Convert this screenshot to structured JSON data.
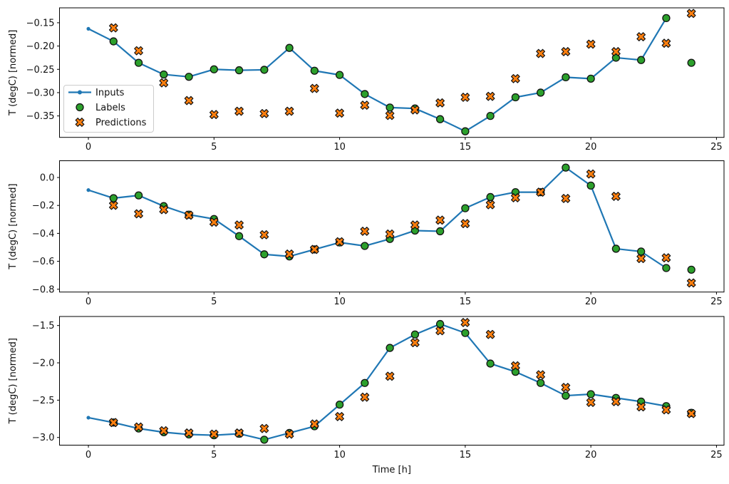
{
  "figure": {
    "xlabel": "Time [h]",
    "ylabel": "T (degC) [normed]",
    "colors": {
      "inputs_line": "#1f77b4",
      "labels_marker": "#2ca02c",
      "predictions_marker": "#ff7f0e",
      "marker_edge": "#111111",
      "axes_edge": "#000000",
      "legend_border": "#cccccc",
      "legend_background": "rgba(255,255,255,0.85)"
    },
    "legend": {
      "items": [
        {
          "label": "Inputs",
          "marker": "line-dot"
        },
        {
          "label": "Labels",
          "marker": "circle"
        },
        {
          "label": "Predictions",
          "marker": "x"
        }
      ]
    }
  },
  "chart_data": [
    {
      "type": "line",
      "ylabel": "T (degC) [normed]",
      "xlim": [
        -1.15,
        25.3
      ],
      "ylim": [
        -0.396,
        -0.118
      ],
      "xticks": [
        0,
        5,
        10,
        15,
        20,
        25
      ],
      "xtick_labels": [
        "0",
        "5",
        "10",
        "15",
        "20",
        "25"
      ],
      "yticks": [
        -0.15,
        -0.2,
        -0.25,
        -0.3,
        -0.35
      ],
      "ytick_labels": [
        "−0.15",
        "−0.20",
        "−0.25",
        "−0.30",
        "−0.35"
      ],
      "series": [
        {
          "name": "Inputs",
          "kind": "line-dot",
          "x": [
            0,
            1,
            2,
            3,
            4,
            5,
            6,
            7,
            8,
            9,
            10,
            11,
            12,
            13,
            14,
            15,
            16,
            17,
            18,
            19,
            20,
            21,
            22,
            23
          ],
          "y": [
            -0.163,
            -0.19,
            -0.236,
            -0.261,
            -0.266,
            -0.25,
            -0.252,
            -0.251,
            -0.204,
            -0.253,
            -0.262,
            -0.303,
            -0.332,
            -0.334,
            -0.357,
            -0.383,
            -0.35,
            -0.31,
            -0.3,
            -0.267,
            -0.27,
            -0.225,
            -0.23,
            -0.14
          ]
        },
        {
          "name": "Labels",
          "kind": "circle",
          "x": [
            1,
            2,
            3,
            4,
            5,
            6,
            7,
            8,
            9,
            10,
            11,
            12,
            13,
            14,
            15,
            16,
            17,
            18,
            19,
            20,
            21,
            22,
            23,
            24
          ],
          "y": [
            -0.19,
            -0.236,
            -0.261,
            -0.266,
            -0.25,
            -0.252,
            -0.251,
            -0.204,
            -0.253,
            -0.262,
            -0.303,
            -0.332,
            -0.334,
            -0.357,
            -0.383,
            -0.35,
            -0.31,
            -0.3,
            -0.267,
            -0.27,
            -0.225,
            -0.23,
            -0.14,
            -0.236
          ]
        },
        {
          "name": "Predictions",
          "kind": "x",
          "x": [
            1,
            2,
            3,
            4,
            5,
            6,
            7,
            8,
            9,
            10,
            11,
            12,
            13,
            14,
            15,
            16,
            17,
            18,
            19,
            20,
            21,
            22,
            23,
            24
          ],
          "y": [
            -0.161,
            -0.21,
            -0.279,
            -0.317,
            -0.347,
            -0.34,
            -0.345,
            -0.34,
            -0.291,
            -0.344,
            -0.327,
            -0.349,
            -0.337,
            -0.322,
            -0.31,
            -0.308,
            -0.27,
            -0.216,
            -0.212,
            -0.196,
            -0.212,
            -0.18,
            -0.194,
            -0.13
          ]
        }
      ]
    },
    {
      "type": "line",
      "ylabel": "T (degC) [normed]",
      "xlim": [
        -1.15,
        25.3
      ],
      "ylim": [
        -0.82,
        0.12
      ],
      "xticks": [
        0,
        5,
        10,
        15,
        20,
        25
      ],
      "xtick_labels": [
        "0",
        "5",
        "10",
        "15",
        "20",
        "25"
      ],
      "yticks": [
        0.0,
        -0.2,
        -0.4,
        -0.6,
        -0.8
      ],
      "ytick_labels": [
        "0.0",
        "−0.2",
        "−0.4",
        "−0.6",
        "−0.8"
      ],
      "series": [
        {
          "name": "Inputs",
          "kind": "line-dot",
          "x": [
            0,
            1,
            2,
            3,
            4,
            5,
            6,
            7,
            8,
            9,
            10,
            11,
            12,
            13,
            14,
            15,
            16,
            17,
            18,
            19,
            20,
            21,
            22,
            23
          ],
          "y": [
            -0.09,
            -0.148,
            -0.128,
            -0.205,
            -0.266,
            -0.297,
            -0.42,
            -0.55,
            -0.565,
            -0.515,
            -0.465,
            -0.49,
            -0.44,
            -0.38,
            -0.385,
            -0.22,
            -0.14,
            -0.105,
            -0.105,
            0.071,
            -0.058,
            -0.51,
            -0.53,
            -0.648
          ]
        },
        {
          "name": "Labels",
          "kind": "circle",
          "x": [
            1,
            2,
            3,
            4,
            5,
            6,
            7,
            8,
            9,
            10,
            11,
            12,
            13,
            14,
            15,
            16,
            17,
            18,
            19,
            20,
            21,
            22,
            23,
            24
          ],
          "y": [
            -0.148,
            -0.128,
            -0.205,
            -0.266,
            -0.297,
            -0.42,
            -0.55,
            -0.565,
            -0.515,
            -0.465,
            -0.49,
            -0.44,
            -0.38,
            -0.385,
            -0.22,
            -0.14,
            -0.105,
            -0.105,
            0.071,
            -0.058,
            -0.51,
            -0.53,
            -0.648,
            -0.66
          ]
        },
        {
          "name": "Predictions",
          "kind": "x",
          "x": [
            1,
            2,
            3,
            4,
            5,
            6,
            7,
            8,
            9,
            10,
            11,
            12,
            13,
            14,
            15,
            16,
            17,
            18,
            19,
            20,
            21,
            22,
            23,
            24
          ],
          "y": [
            -0.199,
            -0.26,
            -0.23,
            -0.27,
            -0.32,
            -0.34,
            -0.41,
            -0.548,
            -0.515,
            -0.46,
            -0.385,
            -0.405,
            -0.34,
            -0.305,
            -0.33,
            -0.195,
            -0.145,
            -0.105,
            -0.15,
            0.025,
            -0.135,
            -0.58,
            -0.575,
            -0.755
          ]
        }
      ]
    },
    {
      "type": "line",
      "ylabel": "T (degC) [normed]",
      "xlabel": "Time [h]",
      "xlim": [
        -1.15,
        25.3
      ],
      "ylim": [
        -3.103,
        -1.379
      ],
      "xticks": [
        0,
        5,
        10,
        15,
        20,
        25
      ],
      "xtick_labels": [
        "0",
        "5",
        "10",
        "15",
        "20",
        "25"
      ],
      "yticks": [
        -1.5,
        -2.0,
        -2.5,
        -3.0
      ],
      "ytick_labels": [
        "−1.5",
        "−2.0",
        "−2.5",
        "−3.0"
      ],
      "series": [
        {
          "name": "Inputs",
          "kind": "line-dot",
          "x": [
            0,
            1,
            2,
            3,
            4,
            5,
            6,
            7,
            8,
            9,
            10,
            11,
            12,
            13,
            14,
            15,
            16,
            17,
            18,
            19,
            20,
            21,
            22,
            23
          ],
          "y": [
            -2.735,
            -2.8,
            -2.88,
            -2.93,
            -2.96,
            -2.97,
            -2.95,
            -3.03,
            -2.94,
            -2.85,
            -2.56,
            -2.27,
            -1.8,
            -1.62,
            -1.48,
            -1.6,
            -2.01,
            -2.12,
            -2.27,
            -2.44,
            -2.42,
            -2.47,
            -2.52,
            -2.58
          ]
        },
        {
          "name": "Labels",
          "kind": "circle",
          "x": [
            1,
            2,
            3,
            4,
            5,
            6,
            7,
            8,
            9,
            10,
            11,
            12,
            13,
            14,
            15,
            16,
            17,
            18,
            19,
            20,
            21,
            22,
            23,
            24
          ],
          "y": [
            -2.8,
            -2.88,
            -2.93,
            -2.96,
            -2.97,
            -2.95,
            -3.03,
            -2.94,
            -2.85,
            -2.56,
            -2.27,
            -1.8,
            -1.62,
            -1.48,
            -1.6,
            -2.01,
            -2.12,
            -2.27,
            -2.44,
            -2.42,
            -2.47,
            -2.52,
            -2.58,
            -2.67
          ]
        },
        {
          "name": "Predictions",
          "kind": "x",
          "x": [
            1,
            2,
            3,
            4,
            5,
            6,
            7,
            8,
            9,
            10,
            11,
            12,
            13,
            14,
            15,
            16,
            17,
            18,
            19,
            20,
            21,
            22,
            23,
            24
          ],
          "y": [
            -2.8,
            -2.86,
            -2.91,
            -2.94,
            -2.955,
            -2.94,
            -2.88,
            -2.955,
            -2.82,
            -2.72,
            -2.46,
            -2.18,
            -1.73,
            -1.57,
            -1.46,
            -1.62,
            -2.04,
            -2.16,
            -2.33,
            -2.53,
            -2.52,
            -2.59,
            -2.63,
            -2.68
          ]
        }
      ]
    }
  ]
}
